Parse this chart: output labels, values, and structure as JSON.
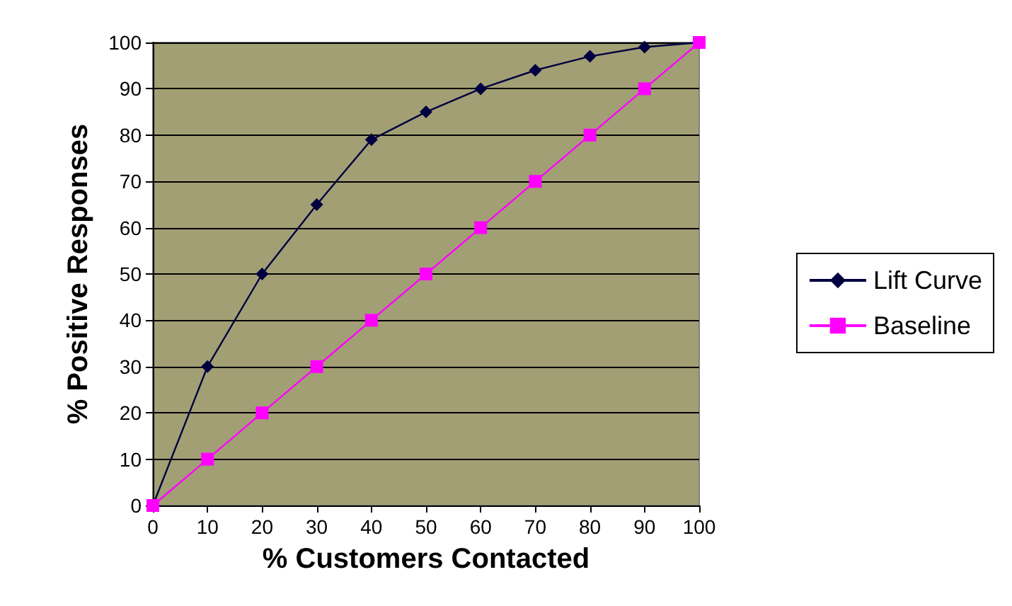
{
  "chart_data": {
    "type": "line",
    "xlabel": "% Customers Contacted",
    "ylabel": "% Positive Responses",
    "x": [
      0,
      10,
      20,
      30,
      40,
      50,
      60,
      70,
      80,
      90,
      100
    ],
    "series": [
      {
        "name": "Lift Curve",
        "color": "#000040",
        "marker": "diamond",
        "values": [
          0,
          30,
          50,
          65,
          79,
          85,
          90,
          94,
          97,
          99,
          100
        ]
      },
      {
        "name": "Baseline",
        "color": "#ff00ff",
        "marker": "square",
        "values": [
          0,
          10,
          20,
          30,
          40,
          50,
          60,
          70,
          80,
          90,
          100
        ]
      }
    ],
    "xlim": [
      0,
      100
    ],
    "xticks": [
      0,
      10,
      20,
      30,
      40,
      50,
      60,
      70,
      80,
      90,
      100
    ],
    "ylim": [
      0,
      100
    ],
    "yticks": [
      0,
      10,
      20,
      30,
      40,
      50,
      60,
      70,
      80,
      90,
      100
    ],
    "grid": "y",
    "legend": "right",
    "line_style": "solid"
  }
}
